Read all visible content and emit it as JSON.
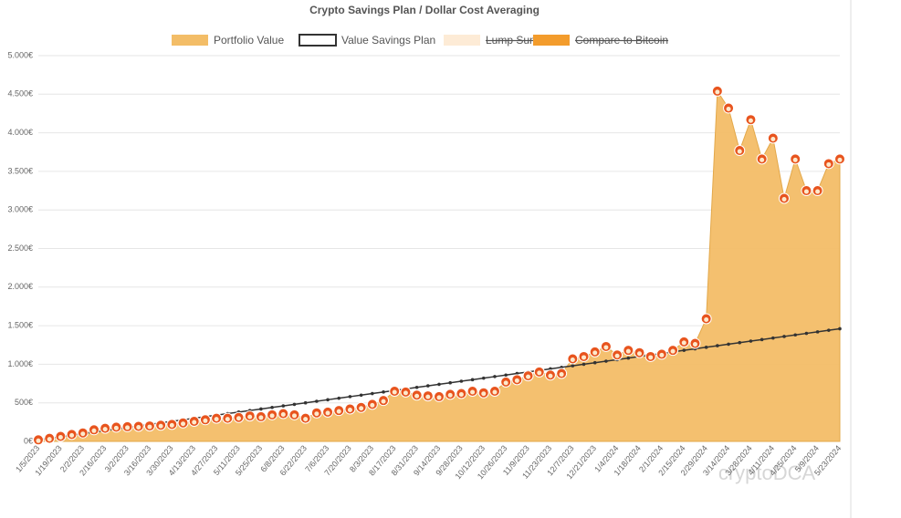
{
  "chart_data": {
    "type": "area",
    "title": "Crypto Savings Plan / Dollar Cost Averaging",
    "categories": [
      "1/5/2023",
      null,
      "1/19/2023",
      null,
      "2/2/2023",
      null,
      "2/16/2023",
      null,
      "3/2/2023",
      null,
      "3/16/2023",
      null,
      "3/30/2023",
      null,
      "4/13/2023",
      null,
      "4/27/2023",
      null,
      "5/11/2023",
      null,
      "5/25/2023",
      null,
      "6/8/2023",
      null,
      "6/22/2023",
      null,
      "7/6/2023",
      null,
      "7/20/2023",
      null,
      "8/3/2023",
      null,
      "8/17/2023",
      null,
      "8/31/2023",
      null,
      "9/14/2023",
      null,
      "9/28/2023",
      null,
      "10/12/2023",
      null,
      "10/26/2023",
      null,
      "11/9/2023",
      null,
      "11/23/2023",
      null,
      "12/7/2023",
      null,
      "12/21/2023",
      null,
      "1/4/2024",
      null,
      "1/18/2024",
      null,
      "2/1/2024",
      null,
      "2/15/2024",
      null,
      "2/29/2024",
      null,
      "3/14/2024",
      null,
      "3/28/2024",
      null,
      "4/11/2024",
      null,
      "4/25/2024",
      null,
      "5/9/2024",
      null,
      "5/23/2024"
    ],
    "series": [
      {
        "name": "Portfolio Value",
        "color": "#f3bd67",
        "values": [
          20,
          40,
          65,
          90,
          110,
          150,
          170,
          185,
          190,
          195,
          200,
          210,
          220,
          240,
          260,
          280,
          300,
          300,
          310,
          330,
          320,
          345,
          360,
          345,
          300,
          370,
          380,
          400,
          420,
          440,
          480,
          530,
          650,
          640,
          600,
          590,
          580,
          610,
          620,
          650,
          630,
          650,
          770,
          800,
          850,
          900,
          860,
          880,
          1070,
          1100,
          1160,
          1230,
          1120,
          1180,
          1150,
          1100,
          1130,
          1180,
          1290,
          1270,
          1590,
          4540,
          4320,
          3770,
          4170,
          3660,
          3930,
          3150,
          3660,
          3250,
          3250,
          3600,
          3660
        ]
      },
      {
        "name": "Value Savings Plan",
        "color": "#333333",
        "values": [
          20,
          40,
          60,
          80,
          100,
          120,
          140,
          160,
          180,
          200,
          220,
          240,
          260,
          280,
          300,
          320,
          340,
          360,
          380,
          400,
          420,
          440,
          460,
          480,
          500,
          520,
          540,
          560,
          580,
          600,
          620,
          640,
          660,
          680,
          700,
          720,
          740,
          760,
          780,
          800,
          820,
          840,
          860,
          880,
          900,
          920,
          940,
          960,
          980,
          1000,
          1020,
          1040,
          1060,
          1080,
          1100,
          1120,
          1140,
          1160,
          1180,
          1200,
          1220,
          1240,
          1260,
          1280,
          1300,
          1320,
          1340,
          1360,
          1380,
          1400,
          1420,
          1440,
          1460
        ]
      },
      {
        "name": "Lump Sum",
        "color": "#fdebd6",
        "hidden": true
      },
      {
        "name": "Compare to Bitcoin",
        "color": "#f39c2c",
        "hidden": true
      }
    ],
    "ylim": [
      0,
      5000
    ],
    "yticks": [
      {
        "value": 0,
        "label": "0€"
      },
      {
        "value": 500,
        "label": "500€"
      },
      {
        "value": 1000,
        "label": "1.000€"
      },
      {
        "value": 1500,
        "label": "1.500€"
      },
      {
        "value": 2000,
        "label": "2.000€"
      },
      {
        "value": 2500,
        "label": "2.500€"
      },
      {
        "value": 3000,
        "label": "3.000€"
      },
      {
        "value": 3500,
        "label": "3.500€"
      },
      {
        "value": 4000,
        "label": "4.000€"
      },
      {
        "value": 4500,
        "label": "4.500€"
      },
      {
        "value": 5000,
        "label": "5.000€"
      }
    ],
    "grid": true,
    "legend": "top",
    "watermark": "cryptoDCA"
  }
}
